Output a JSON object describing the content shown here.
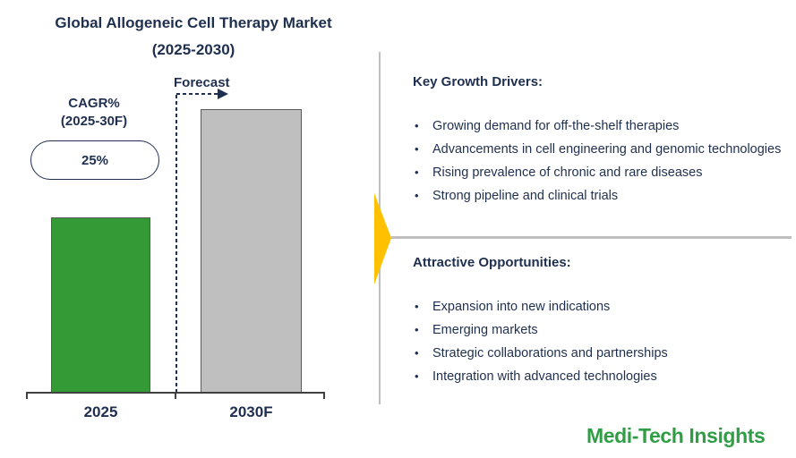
{
  "title": {
    "line1": "Global Allogeneic Cell Therapy Market",
    "line2": "(2025-2030)"
  },
  "chart": {
    "forecast_label": "Forecast",
    "cagr_label_line1": "CAGR%",
    "cagr_label_line2": "(2025-30F)",
    "cagr_value": "25%",
    "x_labels": [
      "2025",
      "2030F"
    ]
  },
  "chart_data": {
    "type": "bar",
    "title": "Global Allogeneic Cell Therapy Market (2025-2030)",
    "categories": [
      "2025",
      "2030F"
    ],
    "series": [
      {
        "name": "Market size (no numeric axis shown; values are bar heights as % of tallest bar)",
        "values": [
          62,
          100
        ]
      }
    ],
    "xlabel": "",
    "ylabel": "",
    "value_axis_visible": false,
    "grid": false,
    "annotations": [
      {
        "text": "Forecast",
        "target": "2030F",
        "style": "dashed divider line with right arrow"
      },
      {
        "text": "CAGR% (2025-30F) = 25%",
        "style": "oval badge"
      }
    ]
  },
  "panel": {
    "drivers": {
      "heading": "Key Growth Drivers:",
      "items": [
        "Growing demand for off-the-shelf therapies",
        "Advancements in cell engineering and genomic technologies",
        "Rising prevalence of chronic and rare diseases",
        "Strong pipeline and clinical trials"
      ]
    },
    "opportunities": {
      "heading": "Attractive Opportunities:",
      "items": [
        "Expansion into new indications",
        "Emerging markets",
        "Strategic collaborations and partnerships",
        "Integration with advanced technologies"
      ]
    }
  },
  "logo_text": "Medi-Tech Insights",
  "colors": {
    "navy": "#1F2F4F",
    "bar_green": "#339A35",
    "bar_gray": "#BFBFBF",
    "bar_border": "#595959",
    "divider_gray": "#BFBFBF",
    "arrow_yellow": "#FFC000",
    "logo_green": "#2F9E44",
    "axis_gray": "#404040"
  }
}
